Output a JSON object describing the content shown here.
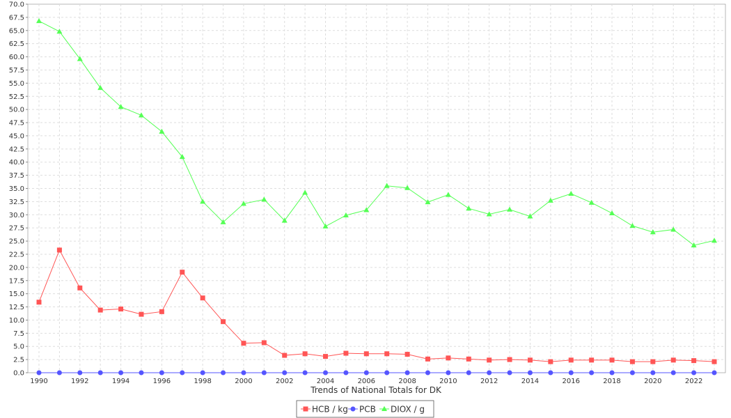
{
  "chart_data": {
    "type": "line",
    "xlabel": "Trends of National Totals for DK",
    "ylabel": "",
    "ylim": [
      0,
      70
    ],
    "y_tick_step": 2.5,
    "x": [
      1990,
      1991,
      1992,
      1993,
      1994,
      1995,
      1996,
      1997,
      1998,
      1999,
      2000,
      2001,
      2002,
      2003,
      2004,
      2005,
      2006,
      2007,
      2008,
      2009,
      2010,
      2011,
      2012,
      2013,
      2014,
      2015,
      2016,
      2017,
      2018,
      2019,
      2020,
      2021,
      2022,
      2023
    ],
    "x_tick_labels": [
      "1990",
      "1992",
      "1994",
      "1996",
      "1998",
      "2000",
      "2002",
      "2004",
      "2006",
      "2008",
      "2010",
      "2012",
      "2014",
      "2016",
      "2018",
      "2020",
      "2022"
    ],
    "grid": true,
    "legend_position": "bottom-center",
    "series": [
      {
        "name": "HCB / kg",
        "color": "#ff5555",
        "marker": "square",
        "values": [
          13.4,
          23.3,
          16.1,
          11.9,
          12.1,
          11.1,
          11.6,
          19.1,
          14.2,
          9.7,
          5.6,
          5.7,
          3.3,
          3.6,
          3.1,
          3.7,
          3.6,
          3.6,
          3.5,
          2.6,
          2.8,
          2.6,
          2.4,
          2.5,
          2.4,
          2.1,
          2.4,
          2.4,
          2.4,
          2.1,
          2.1,
          2.4,
          2.3,
          2.1
        ]
      },
      {
        "name": "PCB",
        "color": "#5555ff",
        "marker": "circle",
        "values": [
          0,
          0,
          0,
          0,
          0,
          0,
          0,
          0,
          0,
          0,
          0,
          0,
          0,
          0,
          0,
          0,
          0,
          0,
          0,
          0,
          0,
          0,
          0,
          0,
          0,
          0,
          0,
          0,
          0,
          0,
          0,
          0,
          0,
          0
        ]
      },
      {
        "name": "DIOX / g",
        "color": "#55ff55",
        "marker": "triangle",
        "values": [
          66.8,
          64.8,
          59.6,
          54.1,
          50.5,
          48.9,
          45.8,
          41.0,
          32.5,
          28.6,
          32.1,
          32.9,
          28.9,
          34.2,
          27.8,
          29.9,
          30.9,
          35.5,
          35.1,
          32.4,
          33.8,
          31.2,
          30.1,
          31.0,
          29.7,
          32.7,
          34.0,
          32.3,
          30.3,
          27.9,
          26.7,
          27.2,
          24.2,
          25.1
        ]
      }
    ]
  }
}
